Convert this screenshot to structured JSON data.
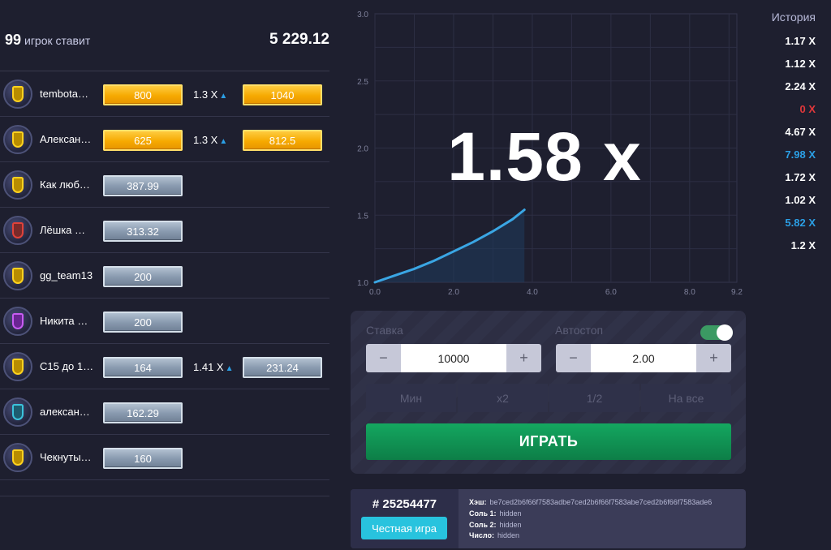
{
  "players": {
    "count": "99",
    "caption": "игрок ставит",
    "total": "5 229.12",
    "rows": [
      {
        "name": "tembota…",
        "bet": "800",
        "bet_style": "gold",
        "multiplier": "1.3 X",
        "win": "1040",
        "avatar": "yellow"
      },
      {
        "name": "Алексан…",
        "bet": "625",
        "bet_style": "gold",
        "multiplier": "1.3 X",
        "win": "812.5",
        "avatar": "yellow"
      },
      {
        "name": "Как люб…",
        "bet": "387.99",
        "bet_style": "silver",
        "multiplier": "",
        "win": "",
        "avatar": "yellow"
      },
      {
        "name": "Лёшка …",
        "bet": "313.32",
        "bet_style": "silver",
        "multiplier": "",
        "win": "",
        "avatar": "red"
      },
      {
        "name": "gg_team13",
        "bet": "200",
        "bet_style": "silver",
        "multiplier": "",
        "win": "",
        "avatar": "yellow"
      },
      {
        "name": "Никита …",
        "bet": "200",
        "bet_style": "silver",
        "multiplier": "",
        "win": "",
        "avatar": "purple"
      },
      {
        "name": "C15 до 1…",
        "bet": "164",
        "bet_style": "silver",
        "multiplier": "1.41 X",
        "win": "231.24",
        "avatar": "yellow"
      },
      {
        "name": "алексан…",
        "bet": "162.29",
        "bet_style": "silver",
        "multiplier": "",
        "win": "",
        "avatar": "teal"
      },
      {
        "name": "Чекнуты…",
        "bet": "160",
        "bet_style": "silver",
        "multiplier": "",
        "win": "",
        "avatar": "yellow"
      }
    ]
  },
  "game": {
    "multiplier": "1.58 x"
  },
  "chart_data": {
    "type": "line",
    "x_ticks": [
      "0.0",
      "2.0",
      "4.0",
      "6.0",
      "8.0",
      "9.2"
    ],
    "y_ticks": [
      "1.0",
      "1.5",
      "2.0",
      "2.5",
      "3.0"
    ],
    "xlim": [
      0,
      9.2
    ],
    "ylim": [
      1.0,
      3.0
    ],
    "grid": true,
    "line_color": "#3aa6e4",
    "series": [
      {
        "x": [
          0.0,
          0.5,
          1.0,
          1.5,
          2.0,
          2.5,
          3.0,
          3.5,
          3.8
        ],
        "y": [
          1.0,
          1.05,
          1.1,
          1.16,
          1.23,
          1.3,
          1.38,
          1.47,
          1.54
        ]
      }
    ]
  },
  "history": {
    "title": "История",
    "items": [
      {
        "value": "1.17 X",
        "color": "#ffffff"
      },
      {
        "value": "1.12 X",
        "color": "#ffffff"
      },
      {
        "value": "2.24 X",
        "color": "#ffffff"
      },
      {
        "value": "0 X",
        "color": "#e2383b"
      },
      {
        "value": "4.67 X",
        "color": "#ffffff"
      },
      {
        "value": "7.98 X",
        "color": "#2b9fe5"
      },
      {
        "value": "1.72 X",
        "color": "#ffffff"
      },
      {
        "value": "1.02 X",
        "color": "#ffffff"
      },
      {
        "value": "5.82 X",
        "color": "#2b9fe5"
      },
      {
        "value": "1.2 X",
        "color": "#ffffff"
      }
    ]
  },
  "controls": {
    "bet_label": "Ставка",
    "bet_value": "10000",
    "autostop_label": "Автостоп",
    "autostop_value": "2.00",
    "autostop_enabled": true,
    "minus": "−",
    "plus": "+",
    "quick": [
      "Мин",
      "x2",
      "1/2",
      "На все"
    ],
    "play_label": "ИГРАТЬ"
  },
  "fairness": {
    "game_id": "# 25254477",
    "button_label": "Честная игра",
    "hash_label": "Хэш:",
    "hash_value": "be7ced2b6f66f7583adbe7ced2b6f66f7583abe7ced2b6f66f7583ade6",
    "salt1_label": "Соль 1:",
    "salt1_value": "hidden",
    "salt2_label": "Соль 2:",
    "salt2_value": "hidden",
    "number_label": "Число:",
    "number_value": "hidden"
  }
}
